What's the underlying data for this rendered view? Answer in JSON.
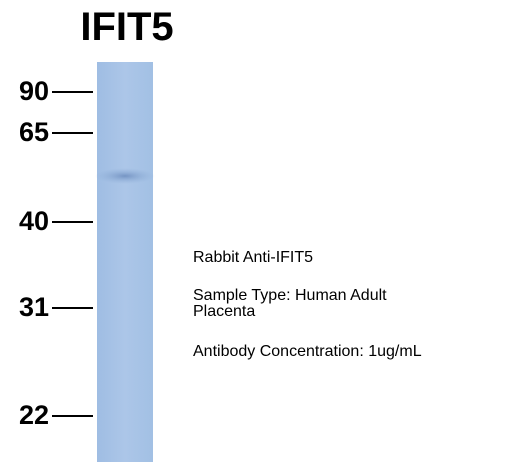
{
  "header": {
    "title": "IFIT5"
  },
  "markers": [
    "90",
    "65",
    "40",
    "31",
    "22"
  ],
  "annotations": [
    "Rabbit Anti-IFIT5",
    "Sample Type: Human Adult",
    "Placenta",
    "Antibody Concentration: 1ug/mL"
  ]
}
